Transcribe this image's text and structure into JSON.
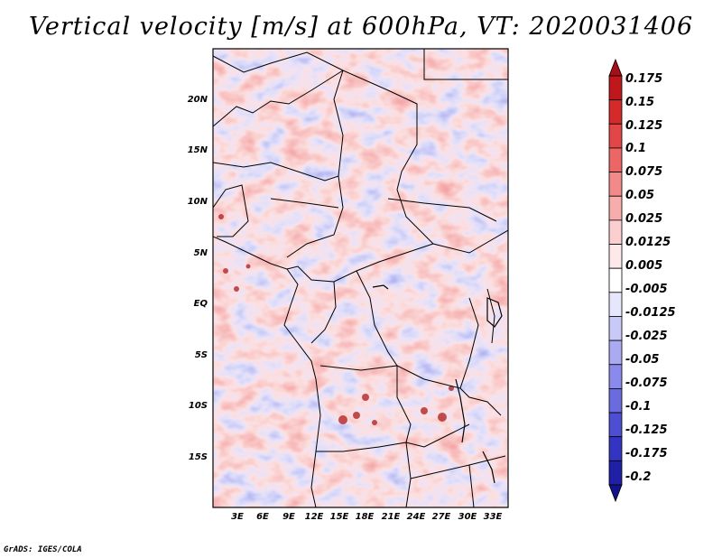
{
  "title": "Vertical velocity [m/s] at 600hPa, VT: 2020031406",
  "credit": "GrADS: IGES/COLA",
  "lat_labels": [
    "20N",
    "15N",
    "10N",
    "5N",
    "EQ",
    "5S",
    "10S",
    "15S"
  ],
  "lon_labels": [
    "3E",
    "6E",
    "9E",
    "12E",
    "15E",
    "18E",
    "21E",
    "24E",
    "27E",
    "30E",
    "33E"
  ],
  "colorbar": {
    "levels": [
      "0.175",
      "0.15",
      "0.125",
      "0.1",
      "0.075",
      "0.05",
      "0.025",
      "0.0125",
      "0.005",
      "-0.005",
      "-0.0125",
      "-0.025",
      "-0.05",
      "-0.075",
      "-0.1",
      "-0.125",
      "-0.175",
      "-0.2"
    ],
    "colors": [
      "#a50f15",
      "#c0171c",
      "#d42a2a",
      "#e34646",
      "#ec6666",
      "#f38a8a",
      "#f8adad",
      "#fbcfcf",
      "#fde9e9",
      "#ffffff",
      "#e6e6fc",
      "#c9c9f8",
      "#aaaaf2",
      "#8a8aea",
      "#6b6be0",
      "#4e4ed4",
      "#3434c2",
      "#1f1fa8",
      "#12128a"
    ]
  }
}
